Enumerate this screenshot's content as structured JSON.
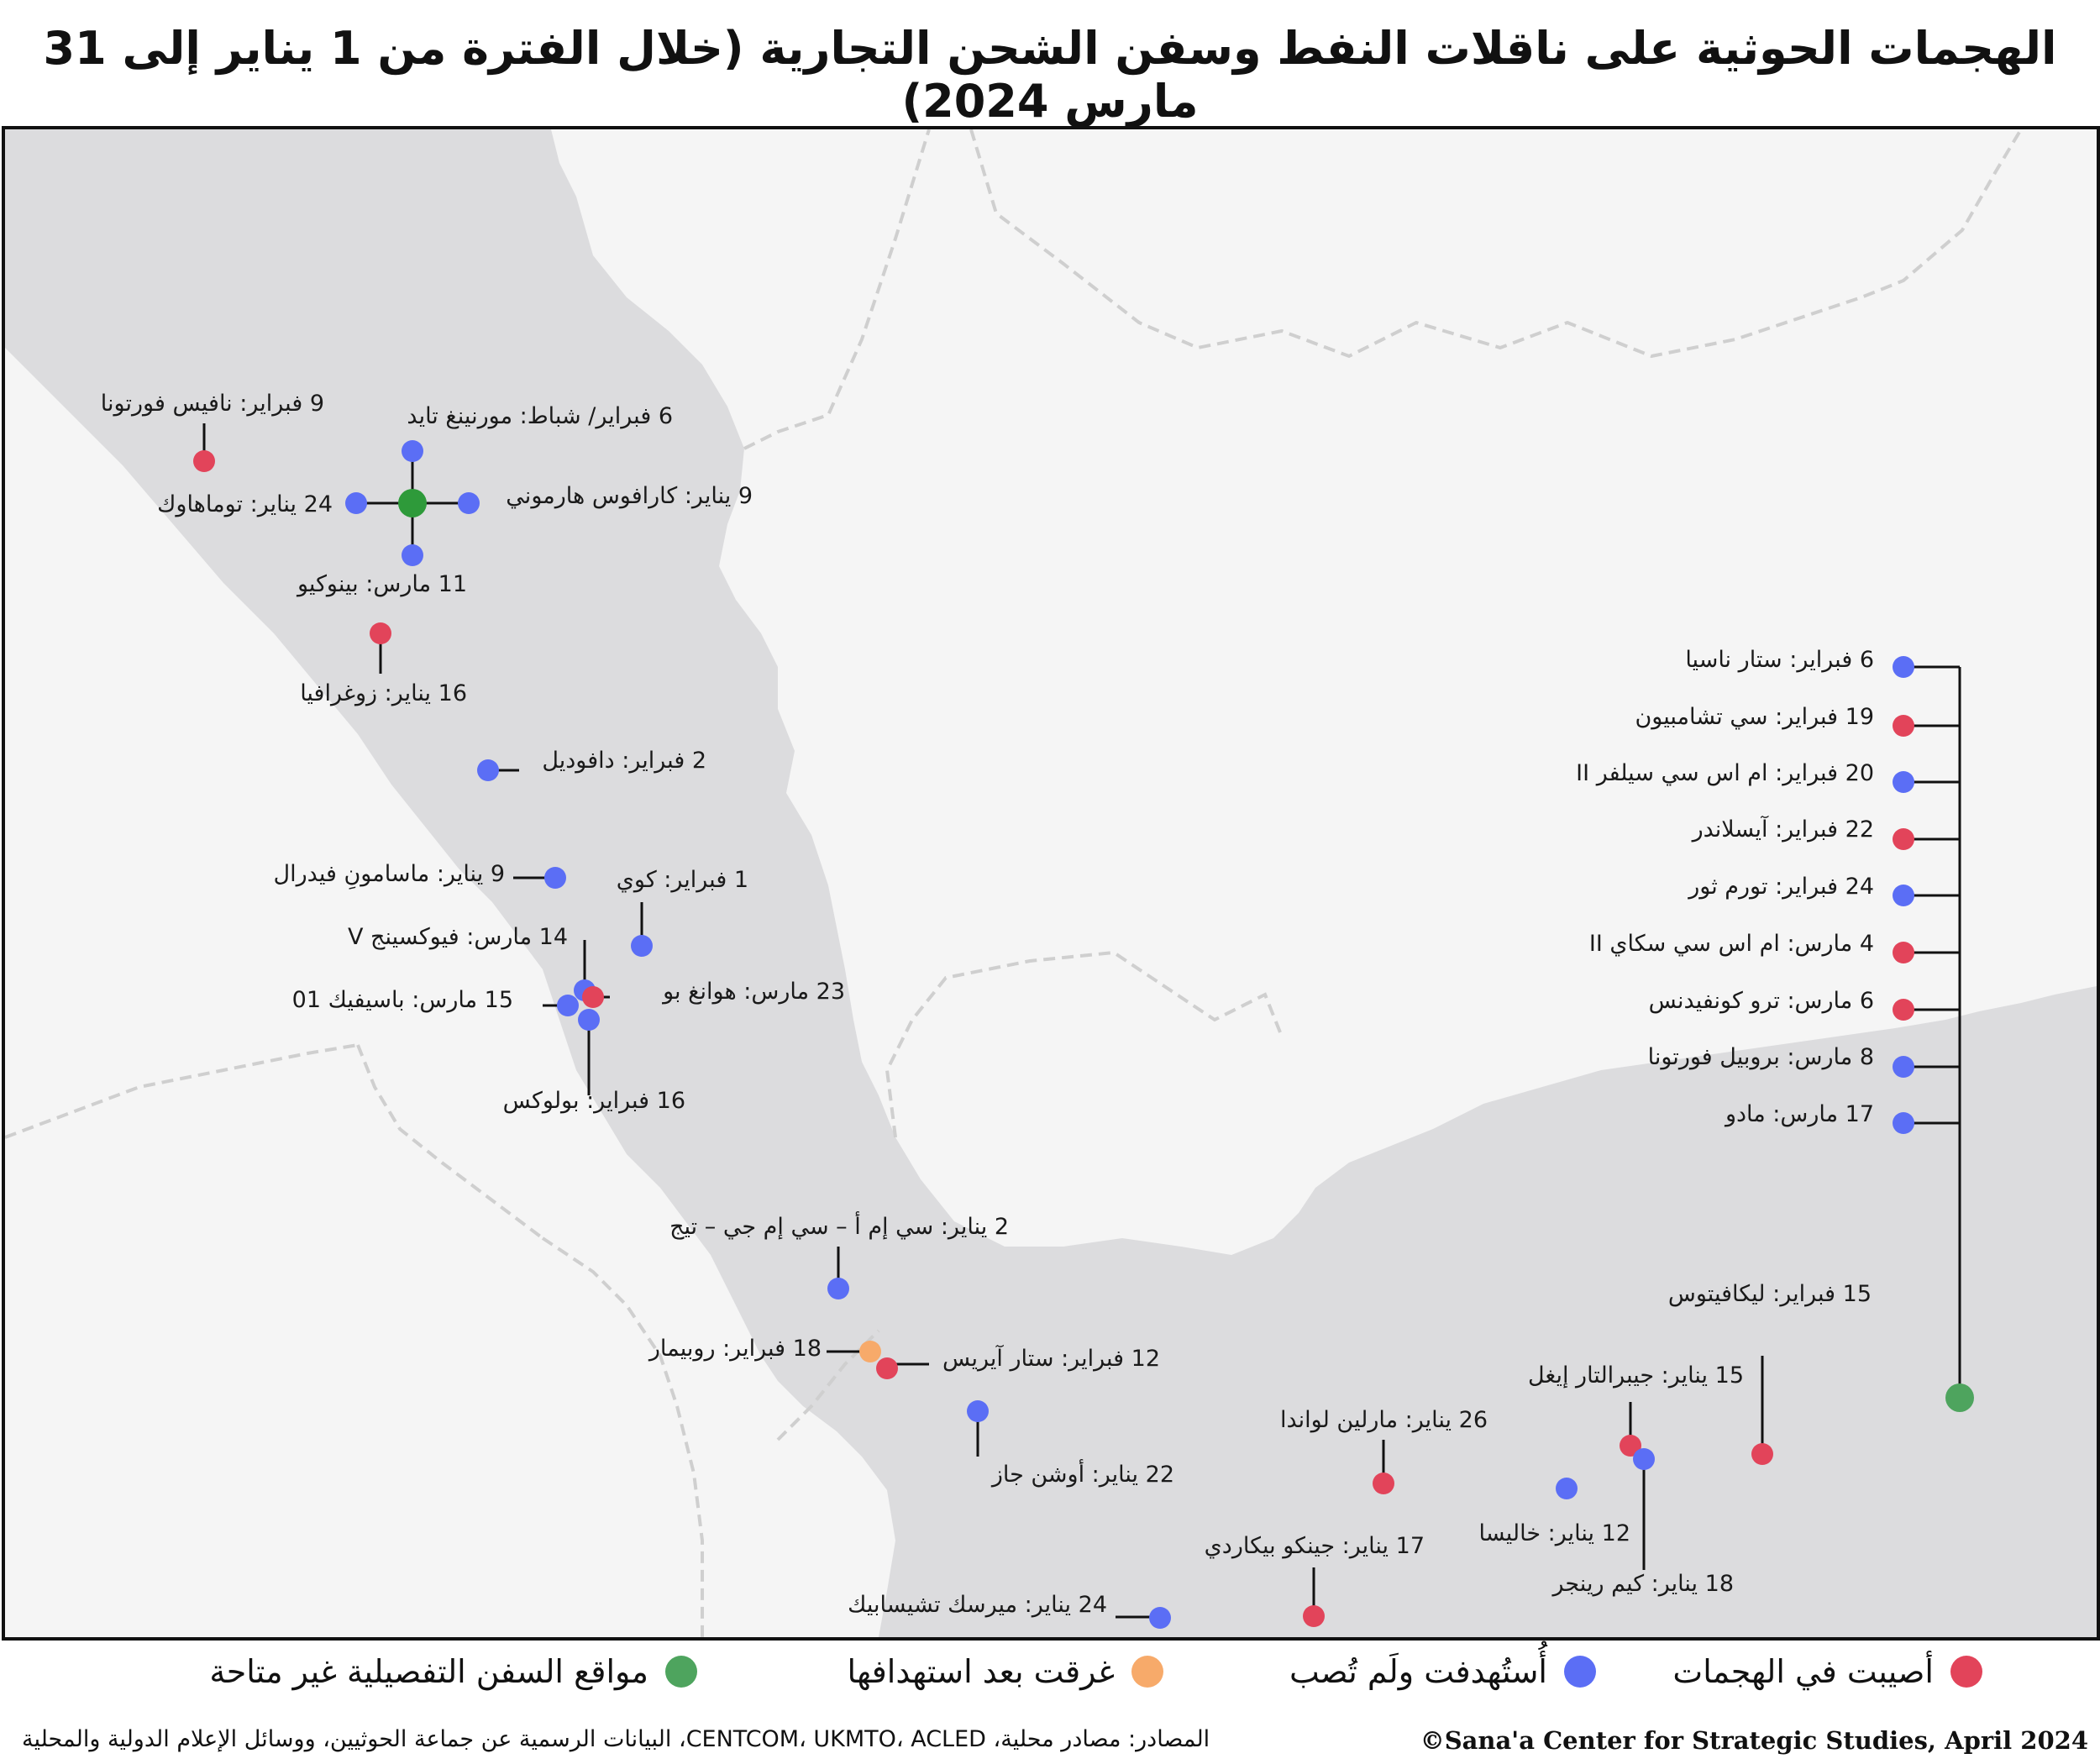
{
  "title": "الهجمات الحوثية على ناقلات النفط وسفن الشحن التجارية (خلال الفترة من 1 يناير إلى 31 مارس 2024)",
  "colors": {
    "hit": "#e2445a",
    "targeted": "#5b6ef5",
    "sunk": "#f7aa6a",
    "unknown": "#4ea45e",
    "cluster_center": "#2e9a3a",
    "sea": "#dcdcde",
    "land": "#f5f5f5",
    "border": "#cfcfcf"
  },
  "labels": {
    "nafis_fortuna": "9 فبراير: نافيس فورتونا",
    "morning_tide": "6 فبراير/ شباط: مورنينغ تايد",
    "tomahawk": "24 يناير: توماهاوك",
    "caravos": "9 يناير: كارافوس هارموني",
    "benokyo": "11 مارس: بينوكيو",
    "zografia": "16 يناير: زوغرافيا",
    "daffodil": "2 فبراير: دافوديل",
    "mamason": "9 يناير: ماسامونِ فيدرال",
    "koi": "1 فبراير: كوي",
    "fiyoxing": "14 مارس: فيوكسينج V",
    "huang_po": "23 مارس: هوانغ بو",
    "pacific": "15 مارس: باسيفيك 01",
    "bolux": "16 فبراير: بولوكس",
    "cma_cgm": "2 يناير: سي إم أ – سي إم جي – تيج",
    "rubymar": "18 فبراير: روبيمار",
    "star_iris": "12 فبراير: ستار آيريس",
    "ocean_jazz": "22 يناير: أوشن جاز",
    "marlin": "26 يناير: مارلين لواندا",
    "khalissa": "12 يناير: خاليسا",
    "genco": "17 يناير: جينكو بيكاردي",
    "maersk": "24 يناير: ميرسك تشيسابيك",
    "kim_ranger": "18 يناير: كيم رينجر",
    "gibraltar": "15 يناير: جيبرالتار إيغل",
    "lycavitos": "15 فبراير: ليكافيتوس",
    "star_nasia": "6 فبراير: ستار ناسيا",
    "sea_champion": "19 فبراير: سي تشامبيون",
    "msc_silver": "20 فبراير: ام اس سي سيلفر II",
    "islander": "22 فبراير: آيسلاندر",
    "torm_thor": "24 فبراير: تورم ثور",
    "msc_sky": "4 مارس: ام اس سي سكاي II",
    "true_confidence": "6 مارس: ترو كونفيدنس",
    "propel_fortuna": "8 مارس: بروبيل فورتونا",
    "mado": "17 مارس: مادو"
  },
  "legend": {
    "hit": "أصيبت في الهجمات",
    "targeted": "أُستُهدفت ولَم تُصب",
    "sunk": "غرقت بعد استهدافها",
    "unknown": "مواقع السفن التفصيلية غير متاحة"
  },
  "footer": {
    "credit": "©Sana'a Center for Strategic Studies, April 2024",
    "sources": "المصادر: مصادر محلية، CENTCOM، UKMTO، ACLED، البيانات الرسمية عن جماعة الحوثيين، ووسائل الإعلام الدولية والمحلية"
  }
}
